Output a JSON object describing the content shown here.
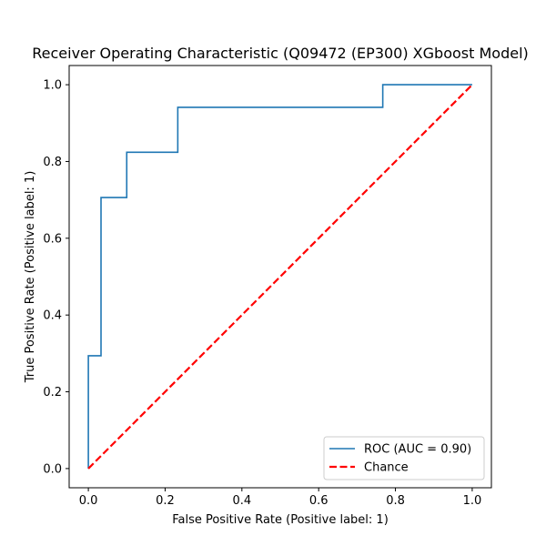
{
  "chart_data": {
    "type": "line",
    "title": "Receiver Operating Characteristic (Q09472 (EP300) XGboost Model)",
    "xlabel": "False Positive Rate (Positive label: 1)",
    "ylabel": "True Positive Rate (Positive label: 1)",
    "xlim": [
      -0.05,
      1.05
    ],
    "ylim": [
      -0.05,
      1.05
    ],
    "grid": false,
    "legend_position": "lower-right",
    "x_ticks": [
      {
        "value": 0.0,
        "label": "0.0"
      },
      {
        "value": 0.2,
        "label": "0.2"
      },
      {
        "value": 0.4,
        "label": "0.4"
      },
      {
        "value": 0.6,
        "label": "0.6"
      },
      {
        "value": 0.8,
        "label": "0.8"
      },
      {
        "value": 1.0,
        "label": "1.0"
      }
    ],
    "y_ticks": [
      {
        "value": 0.0,
        "label": "0.0"
      },
      {
        "value": 0.2,
        "label": "0.2"
      },
      {
        "value": 0.4,
        "label": "0.4"
      },
      {
        "value": 0.6,
        "label": "0.6"
      },
      {
        "value": 0.8,
        "label": "0.8"
      },
      {
        "value": 1.0,
        "label": "1.0"
      }
    ],
    "series": [
      {
        "name": "ROC (AUC = 0.90)",
        "color": "#1f77b4",
        "style": "solid",
        "x": [
          0.0,
          0.0,
          0.033,
          0.033,
          0.1,
          0.1,
          0.233,
          0.233,
          0.767,
          0.767,
          1.0
        ],
        "y": [
          0.0,
          0.294,
          0.294,
          0.706,
          0.706,
          0.824,
          0.824,
          0.941,
          0.941,
          1.0,
          1.0
        ]
      },
      {
        "name": "Chance",
        "color": "#ff0000",
        "style": "dashed",
        "x": [
          0.0,
          1.0
        ],
        "y": [
          0.0,
          1.0
        ]
      }
    ]
  }
}
